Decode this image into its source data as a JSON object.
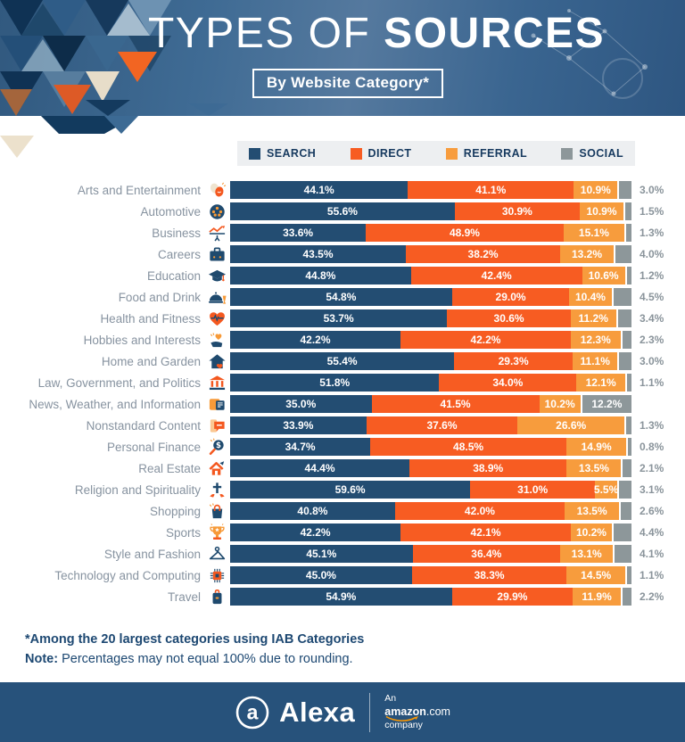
{
  "header": {
    "title_light": "TYPES OF",
    "title_bold": "SOURCES",
    "subtitle": "By Website Category*"
  },
  "legend": [
    {
      "label": "SEARCH",
      "color": "#234d72"
    },
    {
      "label": "DIRECT",
      "color": "#f75c22"
    },
    {
      "label": "REFERRAL",
      "color": "#f79c3d"
    },
    {
      "label": "SOCIAL",
      "color": "#8d979a"
    }
  ],
  "chart_data": {
    "type": "bar",
    "variant": "horizontal-stacked-100-percent",
    "unit": "percent",
    "title": "TYPES OF SOURCES",
    "subtitle": "By Website Category*",
    "series_names": [
      "SEARCH",
      "DIRECT",
      "REFERRAL",
      "SOCIAL"
    ],
    "rows": [
      {
        "category": "Arts and Entertainment",
        "icon": "theater-masks-icon",
        "values": {
          "search": 44.1,
          "direct": 41.1,
          "referral": 10.9,
          "social": 3.0
        },
        "social_label_inside": false
      },
      {
        "category": "Automotive",
        "icon": "wheel-icon",
        "values": {
          "search": 55.6,
          "direct": 30.9,
          "referral": 10.9,
          "social": 1.5
        },
        "social_label_inside": false
      },
      {
        "category": "Business",
        "icon": "growth-chart-icon",
        "values": {
          "search": 33.6,
          "direct": 48.9,
          "referral": 15.1,
          "social": 1.3
        },
        "social_label_inside": false
      },
      {
        "category": "Careers",
        "icon": "briefcase-icon",
        "values": {
          "search": 43.5,
          "direct": 38.2,
          "referral": 13.2,
          "social": 4.0
        },
        "social_label_inside": false
      },
      {
        "category": "Education",
        "icon": "graduation-cap-icon",
        "values": {
          "search": 44.8,
          "direct": 42.4,
          "referral": 10.6,
          "social": 1.2
        },
        "social_label_inside": false
      },
      {
        "category": "Food and Drink",
        "icon": "cloche-icon",
        "values": {
          "search": 54.8,
          "direct": 29.0,
          "referral": 10.4,
          "social": 4.5
        },
        "social_label_inside": false
      },
      {
        "category": "Health and Fitness",
        "icon": "heart-pulse-icon",
        "values": {
          "search": 53.7,
          "direct": 30.6,
          "referral": 11.2,
          "social": 3.4
        },
        "social_label_inside": false
      },
      {
        "category": "Hobbies and Interests",
        "icon": "hand-heart-icon",
        "values": {
          "search": 42.2,
          "direct": 42.2,
          "referral": 12.3,
          "social": 2.3
        },
        "social_label_inside": false
      },
      {
        "category": "Home and Garden",
        "icon": "house-icon",
        "values": {
          "search": 55.4,
          "direct": 29.3,
          "referral": 11.1,
          "social": 3.0
        },
        "social_label_inside": false
      },
      {
        "category": "Law, Government, and Politics",
        "icon": "government-building-icon",
        "values": {
          "search": 51.8,
          "direct": 34.0,
          "referral": 12.1,
          "social": 1.1
        },
        "social_label_inside": false
      },
      {
        "category": "News, Weather, and Information",
        "icon": "newspaper-icon",
        "values": {
          "search": 35.0,
          "direct": 41.5,
          "referral": 10.2,
          "social": 12.2
        },
        "social_label_inside": true
      },
      {
        "category": "Nonstandard Content",
        "icon": "chat-bubble-icon",
        "values": {
          "search": 33.9,
          "direct": 37.6,
          "referral": 26.6,
          "social": 1.3
        },
        "social_label_inside": false
      },
      {
        "category": "Personal Finance",
        "icon": "dollar-magnifier-icon",
        "values": {
          "search": 34.7,
          "direct": 48.5,
          "referral": 14.9,
          "social": 0.8
        },
        "social_label_inside": false
      },
      {
        "category": "Real Estate",
        "icon": "house-sale-icon",
        "values": {
          "search": 44.4,
          "direct": 38.9,
          "referral": 13.5,
          "social": 2.1
        },
        "social_label_inside": false
      },
      {
        "category": "Religion and Spirituality",
        "icon": "cross-hands-icon",
        "values": {
          "search": 59.6,
          "direct": 31.0,
          "referral": 5.5,
          "social": 3.1
        },
        "social_label_inside": false
      },
      {
        "category": "Shopping",
        "icon": "shopping-bag-icon",
        "values": {
          "search": 40.8,
          "direct": 42.0,
          "referral": 13.5,
          "social": 2.6
        },
        "social_label_inside": false
      },
      {
        "category": "Sports",
        "icon": "trophy-icon",
        "values": {
          "search": 42.2,
          "direct": 42.1,
          "referral": 10.2,
          "social": 4.4
        },
        "social_label_inside": false
      },
      {
        "category": "Style and Fashion",
        "icon": "hanger-icon",
        "values": {
          "search": 45.1,
          "direct": 36.4,
          "referral": 13.1,
          "social": 4.1
        },
        "social_label_inside": false
      },
      {
        "category": "Technology and Computing",
        "icon": "chip-icon",
        "values": {
          "search": 45.0,
          "direct": 38.3,
          "referral": 14.5,
          "social": 1.1
        },
        "social_label_inside": false
      },
      {
        "category": "Travel",
        "icon": "luggage-icon",
        "values": {
          "search": 54.9,
          "direct": 29.9,
          "referral": 11.9,
          "social": 2.2
        },
        "social_label_inside": false
      }
    ]
  },
  "footnotes": {
    "line1": "*Among the 20 largest categories using IAB Categories",
    "note_label": "Note:",
    "note_text": "Percentages may not equal 100% due to rounding."
  },
  "footer": {
    "logo_letter": "a",
    "brand": "Alexa",
    "an": "An",
    "amazon": "amazon",
    "dotcom": ".com",
    "company": "company"
  }
}
